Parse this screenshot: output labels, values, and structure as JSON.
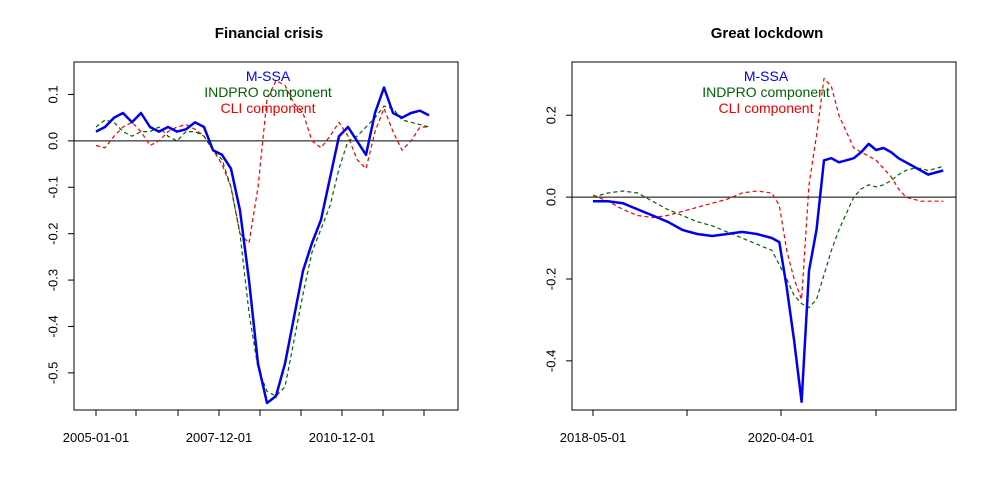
{
  "colors": {
    "mssa": "#0000ee",
    "indpro": "#006400",
    "cli": "#ee0000",
    "axis": "#000000"
  },
  "chart_data": [
    {
      "type": "line",
      "title": "Financial crisis",
      "xlabel": "",
      "ylabel": "",
      "x_tick_labels": [
        "2005-01-01",
        "2007-12-01",
        "2010-12-01"
      ],
      "y_ticks": [
        0.1,
        0.0,
        -0.1,
        -0.2,
        -0.3,
        -0.4,
        -0.5
      ],
      "y_tick_labels": [
        "0.1",
        "0.0",
        "-0.1",
        "-0.2",
        "-0.3",
        "-0.4",
        "-0.5"
      ],
      "ylim": [
        -0.58,
        0.17
      ],
      "reference_line_y": 0,
      "grid": false,
      "legend": "top-center",
      "series": [
        {
          "name": "M-SSA",
          "values": [
            [
              0,
              0.02
            ],
            [
              1,
              0.03
            ],
            [
              2,
              0.05
            ],
            [
              3,
              0.06
            ],
            [
              4,
              0.04
            ],
            [
              5,
              0.06
            ],
            [
              6,
              0.03
            ],
            [
              7,
              0.02
            ],
            [
              8,
              0.03
            ],
            [
              9,
              0.02
            ],
            [
              10,
              0.025
            ],
            [
              11,
              0.04
            ],
            [
              12,
              0.03
            ],
            [
              13,
              -0.02
            ],
            [
              14,
              -0.03
            ],
            [
              15,
              -0.06
            ],
            [
              16,
              -0.15
            ],
            [
              17,
              -0.3
            ],
            [
              18,
              -0.48
            ],
            [
              19,
              -0.565
            ],
            [
              20,
              -0.55
            ],
            [
              21,
              -0.48
            ],
            [
              22,
              -0.38
            ],
            [
              23,
              -0.28
            ],
            [
              24,
              -0.22
            ],
            [
              25,
              -0.17
            ],
            [
              26,
              -0.08
            ],
            [
              27,
              0.01
            ],
            [
              28,
              0.03
            ],
            [
              29,
              0.0
            ],
            [
              30,
              -0.03
            ],
            [
              31,
              0.06
            ],
            [
              32,
              0.115
            ],
            [
              33,
              0.06
            ],
            [
              34,
              0.05
            ],
            [
              35,
              0.06
            ],
            [
              36,
              0.065
            ],
            [
              37,
              0.055
            ]
          ]
        },
        {
          "name": "INDPRO component",
          "values": [
            [
              0,
              0.03
            ],
            [
              1,
              0.045
            ],
            [
              2,
              0.04
            ],
            [
              3,
              0.02
            ],
            [
              4,
              0.01
            ],
            [
              5,
              0.02
            ],
            [
              6,
              0.02
            ],
            [
              7,
              0.03
            ],
            [
              8,
              0.01
            ],
            [
              9,
              0.0
            ],
            [
              10,
              0.02
            ],
            [
              11,
              0.02
            ],
            [
              12,
              0.01
            ],
            [
              13,
              -0.02
            ],
            [
              14,
              -0.04
            ],
            [
              15,
              -0.1
            ],
            [
              16,
              -0.2
            ],
            [
              17,
              -0.37
            ],
            [
              18,
              -0.49
            ],
            [
              19,
              -0.54
            ],
            [
              20,
              -0.55
            ],
            [
              21,
              -0.53
            ],
            [
              22,
              -0.43
            ],
            [
              23,
              -0.33
            ],
            [
              24,
              -0.24
            ],
            [
              25,
              -0.19
            ],
            [
              26,
              -0.14
            ],
            [
              27,
              -0.06
            ],
            [
              28,
              0.0
            ],
            [
              29,
              0.01
            ],
            [
              30,
              0.03
            ],
            [
              31,
              0.05
            ],
            [
              32,
              0.075
            ],
            [
              33,
              0.07
            ],
            [
              34,
              0.045
            ],
            [
              35,
              0.04
            ],
            [
              36,
              0.035
            ],
            [
              37,
              0.03
            ]
          ]
        },
        {
          "name": "CLI component",
          "values": [
            [
              0,
              -0.01
            ],
            [
              1,
              -0.015
            ],
            [
              2,
              0.01
            ],
            [
              3,
              0.03
            ],
            [
              4,
              0.04
            ],
            [
              5,
              0.02
            ],
            [
              6,
              -0.01
            ],
            [
              7,
              0.0
            ],
            [
              8,
              0.02
            ],
            [
              9,
              0.03
            ],
            [
              10,
              0.035
            ],
            [
              11,
              0.025
            ],
            [
              12,
              0.01
            ],
            [
              13,
              -0.02
            ],
            [
              14,
              -0.05
            ],
            [
              15,
              -0.1
            ],
            [
              16,
              -0.2
            ],
            [
              17,
              -0.22
            ],
            [
              18,
              -0.1
            ],
            [
              19,
              0.09
            ],
            [
              20,
              0.13
            ],
            [
              21,
              0.12
            ],
            [
              22,
              0.08
            ],
            [
              23,
              0.06
            ],
            [
              24,
              0.0
            ],
            [
              25,
              -0.015
            ],
            [
              26,
              0.01
            ],
            [
              27,
              0.04
            ],
            [
              28,
              0.01
            ],
            [
              29,
              -0.04
            ],
            [
              30,
              -0.06
            ],
            [
              31,
              0.02
            ],
            [
              32,
              0.07
            ],
            [
              33,
              0.02
            ],
            [
              34,
              -0.02
            ],
            [
              35,
              0.0
            ],
            [
              36,
              0.03
            ],
            [
              37,
              0.03
            ]
          ]
        }
      ]
    },
    {
      "type": "line",
      "title": "Great lockdown",
      "xlabel": "",
      "ylabel": "",
      "x_tick_labels": [
        "2018-05-01",
        "2020-04-01"
      ],
      "y_ticks": [
        0.2,
        0.0,
        -0.2,
        -0.4
      ],
      "y_tick_labels": [
        "0.2",
        "0.0",
        "-0.2",
        "-0.4"
      ],
      "ylim": [
        -0.52,
        0.33
      ],
      "reference_line_y": 0,
      "grid": false,
      "legend": "top-center",
      "series": [
        {
          "name": "M-SSA",
          "values": [
            [
              0,
              -0.01
            ],
            [
              2,
              -0.01
            ],
            [
              4,
              -0.015
            ],
            [
              6,
              -0.03
            ],
            [
              8,
              -0.045
            ],
            [
              10,
              -0.06
            ],
            [
              12,
              -0.08
            ],
            [
              14,
              -0.09
            ],
            [
              16,
              -0.095
            ],
            [
              18,
              -0.09
            ],
            [
              20,
              -0.085
            ],
            [
              22,
              -0.09
            ],
            [
              24,
              -0.1
            ],
            [
              25,
              -0.11
            ],
            [
              26,
              -0.22
            ],
            [
              27,
              -0.35
            ],
            [
              28,
              -0.5
            ],
            [
              29,
              -0.18
            ],
            [
              30,
              -0.08
            ],
            [
              31,
              0.09
            ],
            [
              32,
              0.095
            ],
            [
              33,
              0.085
            ],
            [
              34,
              0.09
            ],
            [
              35,
              0.095
            ],
            [
              36,
              0.11
            ],
            [
              37,
              0.13
            ],
            [
              38,
              0.115
            ],
            [
              39,
              0.12
            ],
            [
              40,
              0.11
            ],
            [
              41,
              0.095
            ],
            [
              42,
              0.085
            ],
            [
              43,
              0.075
            ],
            [
              44,
              0.065
            ],
            [
              45,
              0.055
            ],
            [
              46,
              0.06
            ],
            [
              47,
              0.065
            ]
          ]
        },
        {
          "name": "INDPRO component",
          "values": [
            [
              0,
              0.0
            ],
            [
              2,
              0.01
            ],
            [
              4,
              0.015
            ],
            [
              6,
              0.01
            ],
            [
              8,
              -0.01
            ],
            [
              10,
              -0.03
            ],
            [
              12,
              -0.045
            ],
            [
              14,
              -0.06
            ],
            [
              16,
              -0.07
            ],
            [
              18,
              -0.085
            ],
            [
              20,
              -0.1
            ],
            [
              22,
              -0.115
            ],
            [
              24,
              -0.13
            ],
            [
              26,
              -0.2
            ],
            [
              27,
              -0.24
            ],
            [
              28,
              -0.26
            ],
            [
              29,
              -0.27
            ],
            [
              30,
              -0.25
            ],
            [
              31,
              -0.19
            ],
            [
              32,
              -0.13
            ],
            [
              33,
              -0.08
            ],
            [
              34,
              -0.04
            ],
            [
              35,
              0.0
            ],
            [
              36,
              0.02
            ],
            [
              37,
              0.03
            ],
            [
              38,
              0.025
            ],
            [
              39,
              0.03
            ],
            [
              40,
              0.04
            ],
            [
              41,
              0.055
            ],
            [
              42,
              0.065
            ],
            [
              43,
              0.07
            ],
            [
              44,
              0.07
            ],
            [
              45,
              0.065
            ],
            [
              46,
              0.07
            ],
            [
              47,
              0.075
            ]
          ]
        },
        {
          "name": "CLI component",
          "values": [
            [
              0,
              0.005
            ],
            [
              2,
              -0.01
            ],
            [
              4,
              -0.03
            ],
            [
              6,
              -0.045
            ],
            [
              8,
              -0.05
            ],
            [
              10,
              -0.045
            ],
            [
              12,
              -0.035
            ],
            [
              14,
              -0.025
            ],
            [
              16,
              -0.015
            ],
            [
              18,
              -0.005
            ],
            [
              20,
              0.01
            ],
            [
              22,
              0.015
            ],
            [
              24,
              0.01
            ],
            [
              25,
              -0.02
            ],
            [
              26,
              -0.13
            ],
            [
              27,
              -0.2
            ],
            [
              28,
              -0.25
            ],
            [
              29,
              0.03
            ],
            [
              30,
              0.15
            ],
            [
              31,
              0.29
            ],
            [
              32,
              0.27
            ],
            [
              33,
              0.2
            ],
            [
              34,
              0.16
            ],
            [
              35,
              0.12
            ],
            [
              36,
              0.11
            ],
            [
              37,
              0.1
            ],
            [
              38,
              0.09
            ],
            [
              39,
              0.07
            ],
            [
              40,
              0.05
            ],
            [
              41,
              0.02
            ],
            [
              42,
              0.0
            ],
            [
              43,
              -0.005
            ],
            [
              44,
              -0.01
            ],
            [
              45,
              -0.01
            ],
            [
              46,
              -0.01
            ],
            [
              47,
              -0.01
            ]
          ]
        }
      ]
    }
  ]
}
